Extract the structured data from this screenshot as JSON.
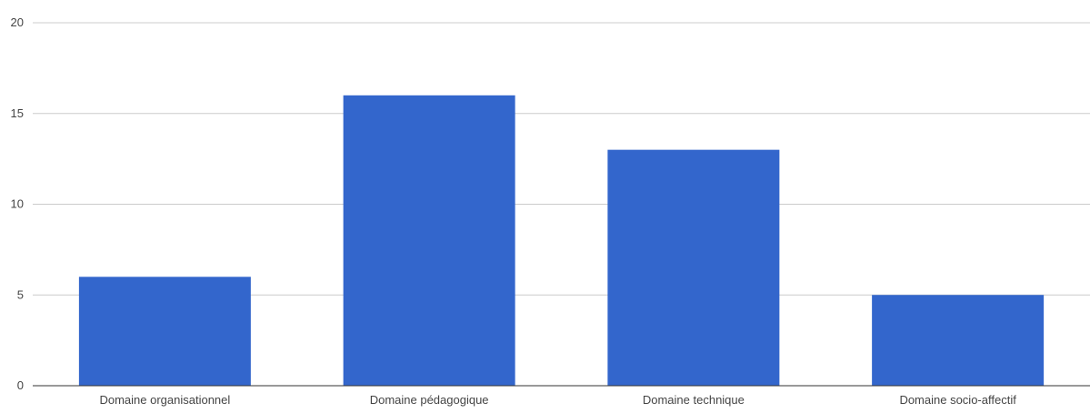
{
  "chart_data": {
    "type": "bar",
    "title": "",
    "xlabel": "",
    "ylabel": "",
    "categories": [
      "Domaine organisationnel",
      "Domaine pédagogique",
      "Domaine technique",
      "Domaine socio-affectif"
    ],
    "values": [
      6,
      16,
      13,
      5
    ],
    "ylim": [
      0,
      20
    ],
    "yticks": [
      0,
      5,
      10,
      15,
      20
    ],
    "grid": true,
    "legend": "none",
    "colors": {
      "bar": "#3366cc",
      "grid": "#cccccc",
      "axis": "#333333",
      "label": "#444444"
    }
  }
}
